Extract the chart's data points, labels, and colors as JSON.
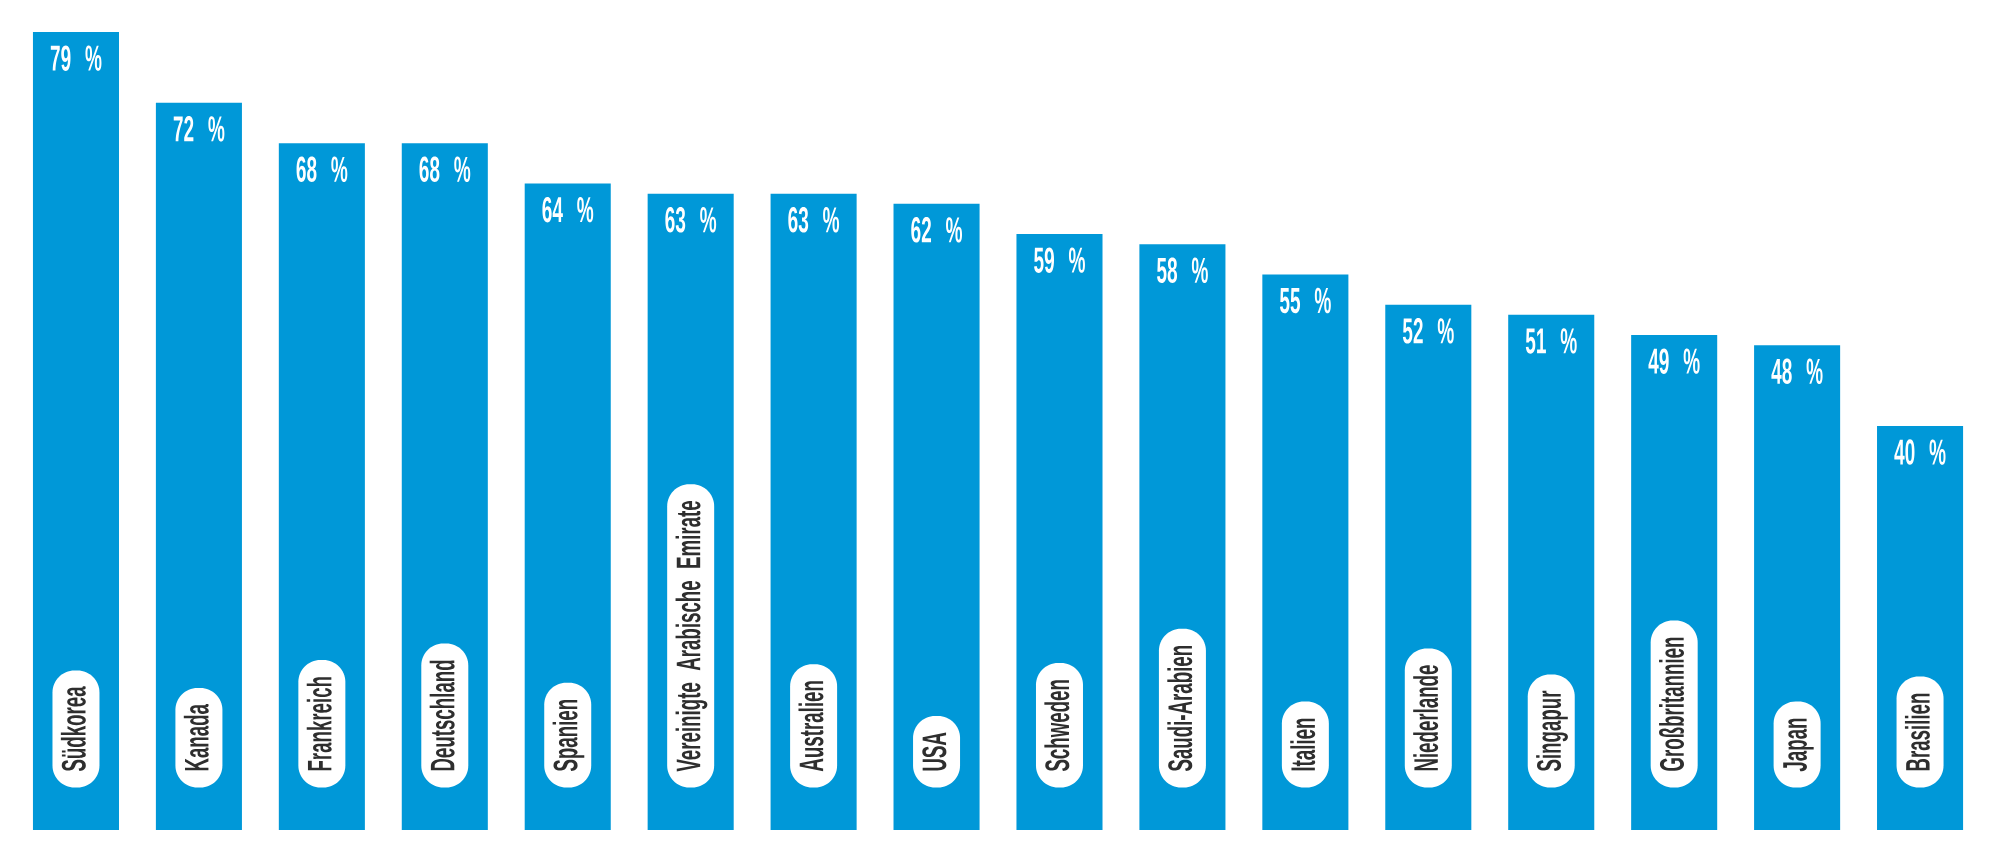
{
  "chart_data": {
    "type": "bar",
    "categories": [
      "Südkorea",
      "Kanada",
      "Frankreich",
      "Deutschland",
      "Spanien",
      "Vereinigte Arabische Emirate",
      "Australien",
      "USA",
      "Schweden",
      "Saudi-Arabien",
      "Italien",
      "Niederlande",
      "Singapur",
      "Großbritannien",
      "Japan",
      "Brasilien"
    ],
    "values": [
      79,
      72,
      68,
      68,
      64,
      63,
      63,
      62,
      59,
      58,
      55,
      52,
      51,
      49,
      48,
      40
    ],
    "value_labels": [
      "79 %",
      "72 %",
      "68 %",
      "68 %",
      "64 %",
      "63 %",
      "63 %",
      "62 %",
      "59 %",
      "58 %",
      "55 %",
      "52 %",
      "51 %",
      "49 %",
      "48 %",
      "40 %"
    ],
    "color": "#0098d8",
    "tick_labels": "x"
  }
}
